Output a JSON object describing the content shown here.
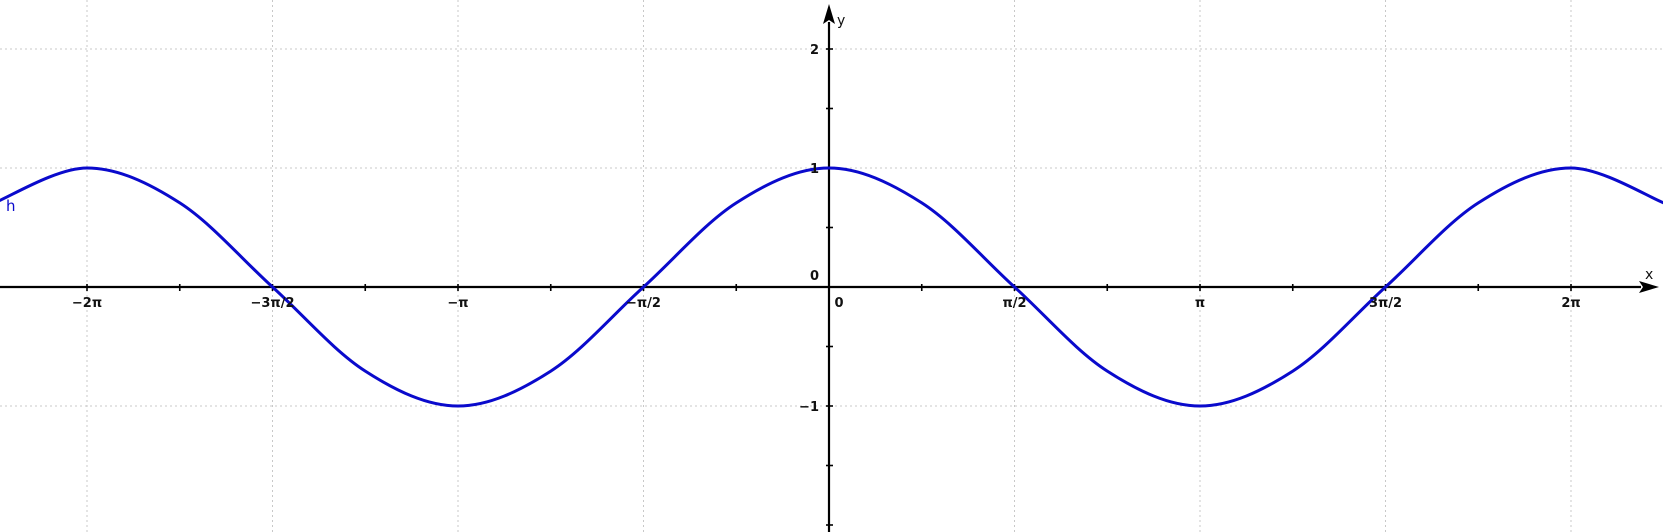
{
  "chart_data": {
    "type": "line",
    "title": "",
    "xlabel": "x",
    "ylabel": "y",
    "xlim": [
      -8.3,
      8.3
    ],
    "ylim": [
      -2.2,
      2.4
    ],
    "grid": true,
    "x_ticks": [
      {
        "value": -6.2832,
        "label": "−2π"
      },
      {
        "value": -4.7124,
        "label": "−3π/2"
      },
      {
        "value": -3.1416,
        "label": "−π"
      },
      {
        "value": -1.5708,
        "label": "−π/2"
      },
      {
        "value": 0,
        "label": "0"
      },
      {
        "value": 1.5708,
        "label": "π/2"
      },
      {
        "value": 3.1416,
        "label": "π"
      },
      {
        "value": 4.7124,
        "label": "3π/2"
      },
      {
        "value": 6.2832,
        "label": "2π"
      }
    ],
    "y_ticks": [
      {
        "value": -1,
        "label": "−1"
      },
      {
        "value": 0,
        "label": "0"
      },
      {
        "value": 1,
        "label": "1"
      },
      {
        "value": 2,
        "label": "2"
      }
    ],
    "series": [
      {
        "name": "h",
        "color": "#0a0acc",
        "x": [
          -7.0686,
          -6.2832,
          -5.4978,
          -4.7124,
          -3.927,
          -3.1416,
          -2.3562,
          -1.5708,
          -0.7854,
          0,
          0.7854,
          1.5708,
          2.3562,
          3.1416,
          3.927,
          4.7124,
          5.4978,
          6.2832,
          7.0686
        ],
        "y": [
          0.707,
          1,
          0.707,
          0,
          -0.707,
          -1,
          -0.707,
          0,
          0.707,
          1,
          0.707,
          0,
          -0.707,
          -1,
          -0.707,
          0,
          0.707,
          1,
          0.707
        ]
      }
    ]
  }
}
